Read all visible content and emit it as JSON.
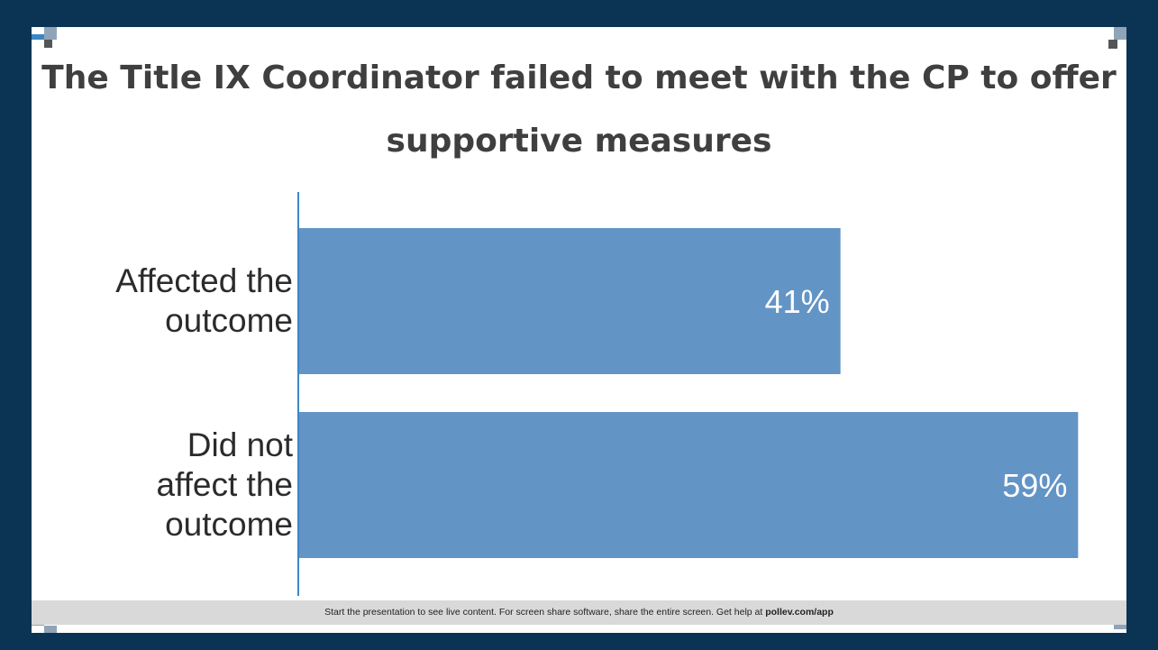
{
  "slide": {
    "title": "The Title IX Coordinator failed to meet with the CP to offer supportive measures",
    "footer_text": "Start the presentation to see live content. For screen share software, share the entire screen. Get help at ",
    "footer_link": "pollev.com/app"
  },
  "colors": {
    "background": "#0b3354",
    "bar": "#6394c6",
    "title": "#3f3f3f",
    "footer_bg": "#d9d9d9"
  },
  "chart_data": {
    "type": "bar",
    "orientation": "horizontal",
    "categories": [
      "Affected the outcome",
      "Did not affect the outcome"
    ],
    "category_lines": [
      [
        "Affected the",
        "outcome"
      ],
      [
        "Did not",
        "affect the",
        "outcome"
      ]
    ],
    "values": [
      41,
      59
    ],
    "data_labels": [
      "41%",
      "59%"
    ],
    "xlim": [
      0,
      60
    ],
    "grid": false,
    "legend": "none"
  }
}
